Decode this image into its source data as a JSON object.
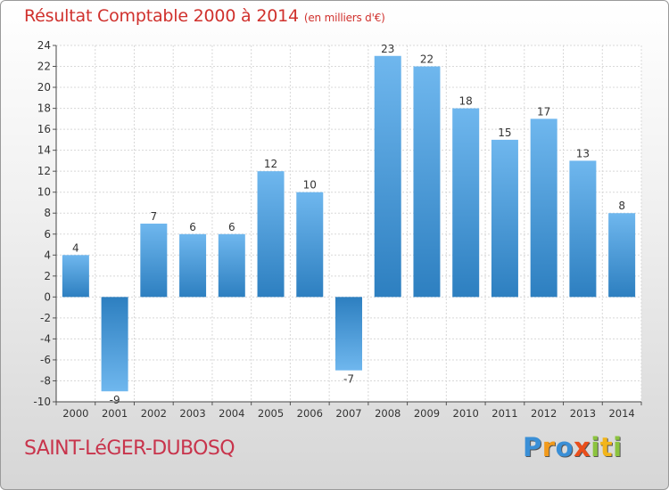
{
  "chart_data": {
    "type": "bar",
    "title": "Résultat Comptable 2000 à 2014",
    "subtitle": "(en milliers d'€)",
    "categories": [
      "2000",
      "2001",
      "2002",
      "2003",
      "2004",
      "2005",
      "2006",
      "2007",
      "2008",
      "2009",
      "2010",
      "2011",
      "2012",
      "2013",
      "2014"
    ],
    "values": [
      4,
      -9,
      7,
      6,
      6,
      12,
      10,
      -7,
      23,
      22,
      18,
      15,
      17,
      13,
      8
    ],
    "ylim": [
      -10,
      24
    ],
    "yticks": [
      -10,
      -8,
      -6,
      -4,
      -2,
      0,
      2,
      4,
      6,
      8,
      10,
      12,
      14,
      16,
      18,
      20,
      22,
      24
    ],
    "grid": true,
    "colors": {
      "bar_light": "#6fb7ee",
      "bar_dark": "#2d7fc0"
    }
  },
  "footer": {
    "place": "SAINT-LéGER-DUBOSQ",
    "brand_letters": [
      {
        "ch": "P",
        "color": "#3a8fd6"
      },
      {
        "ch": "r",
        "color": "#f29a1b"
      },
      {
        "ch": "o",
        "color": "#3a8fd6"
      },
      {
        "ch": "x",
        "color": "#e94e1b"
      },
      {
        "ch": "i",
        "color": "#8cc43f"
      },
      {
        "ch": "t",
        "color": "#f2b51b"
      },
      {
        "ch": "i",
        "color": "#8cc43f"
      }
    ]
  }
}
